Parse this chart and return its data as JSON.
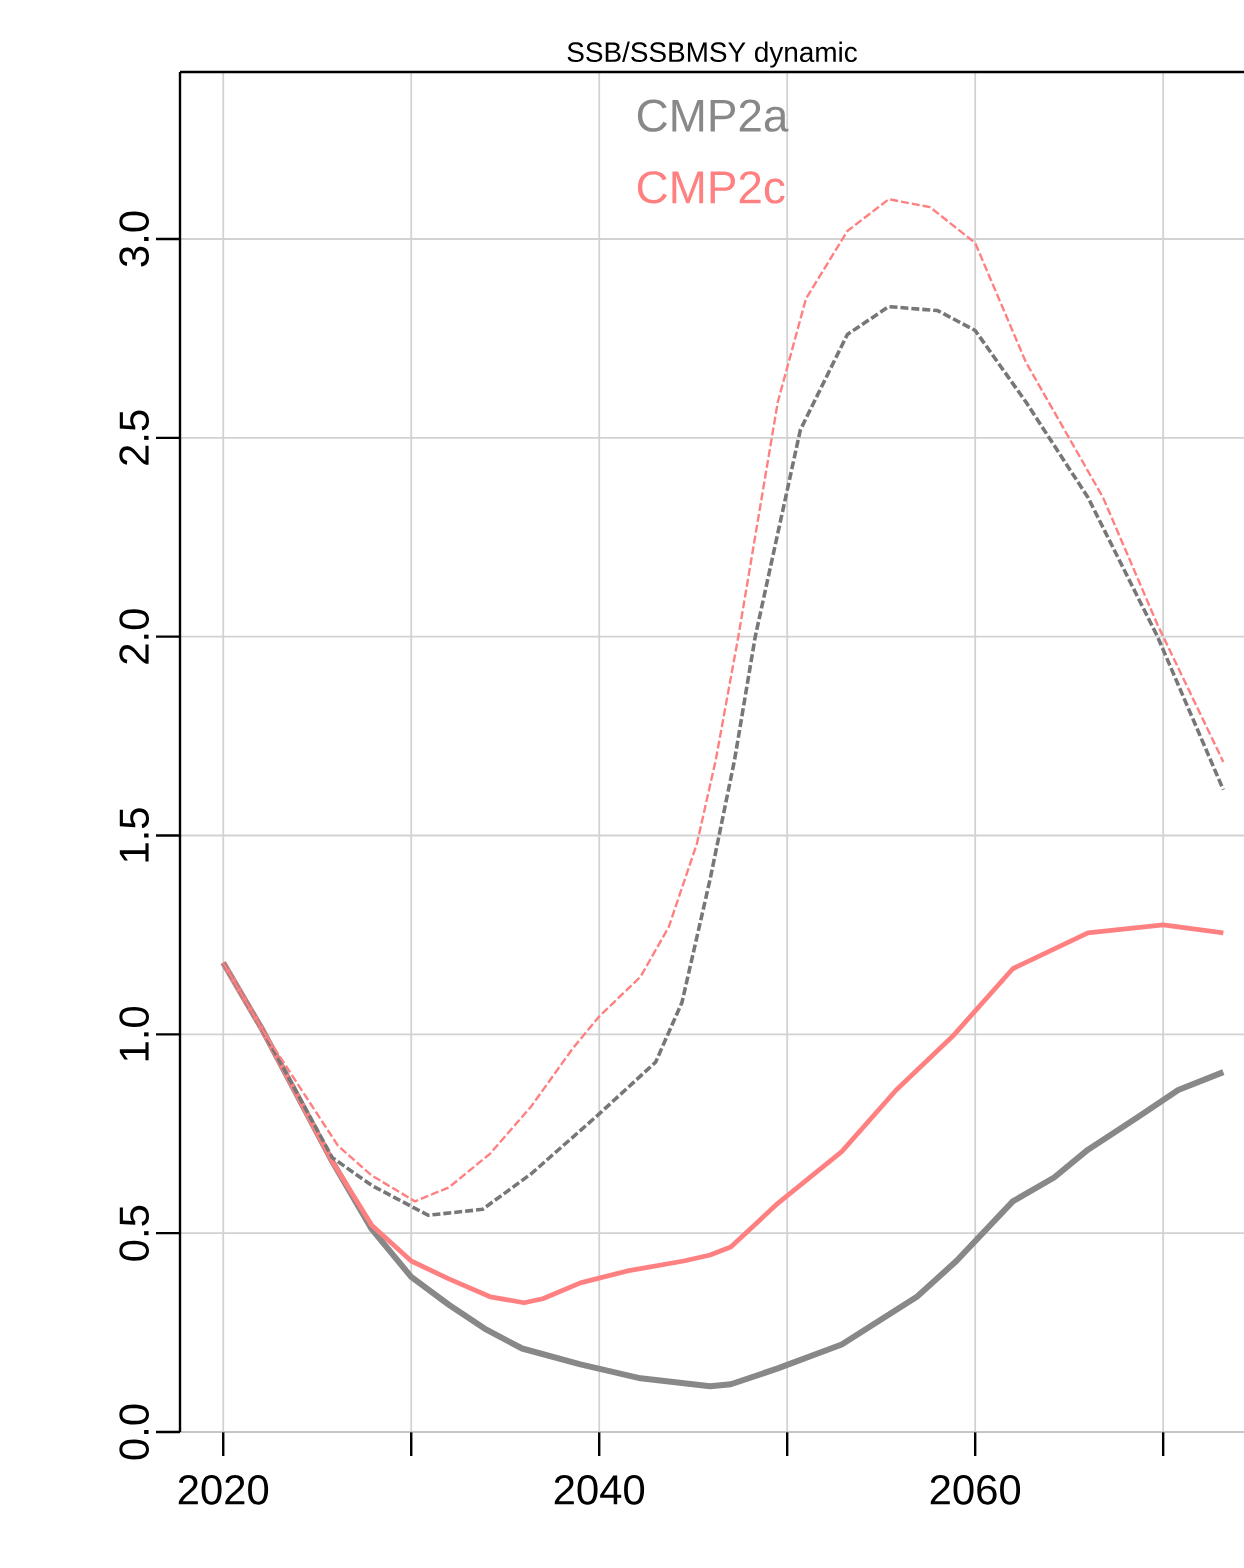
{
  "chart_data": {
    "type": "line",
    "title": "SSB/SSBMSY dynamic",
    "xlim": [
      2017.7,
      2074.3
    ],
    "ylim": [
      0,
      3.42
    ],
    "xticks": [
      2020,
      {
        "value": 2030,
        "label": null
      },
      2040,
      {
        "value": 2050,
        "label": null
      },
      2060,
      {
        "value": 2070,
        "label": null
      }
    ],
    "yticks": [
      {
        "value": 0,
        "label": "0.0"
      },
      {
        "value": 0.5,
        "label": "0.5"
      },
      {
        "value": 1,
        "label": "1.0"
      },
      {
        "value": 1.5,
        "label": "1.5"
      },
      {
        "value": 2,
        "label": "2.0"
      },
      {
        "value": 2.5,
        "label": "2.5"
      },
      {
        "value": 3,
        "label": "3.0"
      }
    ],
    "grid": true,
    "legend": "top",
    "marker": "none",
    "series": [
      {
        "name": "CMP2a",
        "color": "#888888",
        "line_style": "solid",
        "x": [
          2020,
          2022.1,
          2025.8,
          2027.9,
          2030,
          2032,
          2033.9,
          2035.9,
          2039,
          2042.2,
          2045.9,
          2047,
          2049.5,
          2052.9,
          2056.9,
          2059,
          2062,
          2064.2,
          2066,
          2068.6,
          2070.8,
          2073.2
        ],
        "values": [
          1.18,
          1.01,
          0.68,
          0.51,
          0.39,
          0.32,
          0.26,
          0.21,
          0.17,
          0.135,
          0.115,
          0.12,
          0.16,
          0.22,
          0.34,
          0.43,
          0.58,
          0.64,
          0.71,
          0.79,
          0.86,
          0.905
        ]
      },
      {
        "name": "CMP2c",
        "color": "#ff8080",
        "line_style": "solid",
        "x": [
          2020,
          2022.1,
          2025.8,
          2027.9,
          2030,
          2032,
          2034.2,
          2036,
          2037,
          2039,
          2041.5,
          2044.5,
          2045.9,
          2047,
          2049.5,
          2052.9,
          2055.8,
          2058.8,
          2062,
          2066,
          2070,
          2073.2
        ],
        "values": [
          1.18,
          1.01,
          0.68,
          0.52,
          0.43,
          0.385,
          0.34,
          0.325,
          0.335,
          0.375,
          0.405,
          0.43,
          0.445,
          0.465,
          0.575,
          0.705,
          0.86,
          0.995,
          1.165,
          1.255,
          1.275,
          1.255
        ]
      },
      {
        "color": "#777777",
        "line_style": "dashed",
        "x": [
          2020,
          2022.1,
          2025.8,
          2027.9,
          2030.9,
          2033.8,
          2036.4,
          2040,
          2043,
          2044.4,
          2045.9,
          2047.2,
          2048.3,
          2050.7,
          2053.2,
          2055.4,
          2058,
          2060,
          2062.7,
          2066,
          2069.7,
          2073.2
        ],
        "values": [
          1.18,
          1.01,
          0.69,
          0.62,
          0.545,
          0.56,
          0.65,
          0.8,
          0.93,
          1.08,
          1.39,
          1.69,
          2.0,
          2.52,
          2.76,
          2.83,
          2.82,
          2.77,
          2.59,
          2.35,
          2.0,
          1.615
        ]
      },
      {
        "color": "#ff8080",
        "line_style": "dashed",
        "x": [
          2020,
          2022.1,
          2026.1,
          2027.9,
          2030.2,
          2032,
          2034.2,
          2036.4,
          2038.6,
          2040,
          2042.2,
          2043.7,
          2045.2,
          2046.2,
          2047.4,
          2049.5,
          2051,
          2053.2,
          2055.4,
          2057.6,
          2060,
          2062.7,
          2066.8,
          2069.7,
          2073.2
        ],
        "values": [
          1.18,
          1.01,
          0.72,
          0.645,
          0.58,
          0.615,
          0.7,
          0.82,
          0.965,
          1.045,
          1.145,
          1.27,
          1.48,
          1.69,
          2.0,
          2.59,
          2.85,
          3.02,
          3.1,
          3.08,
          2.99,
          2.69,
          2.35,
          2.03,
          1.685
        ]
      }
    ]
  }
}
